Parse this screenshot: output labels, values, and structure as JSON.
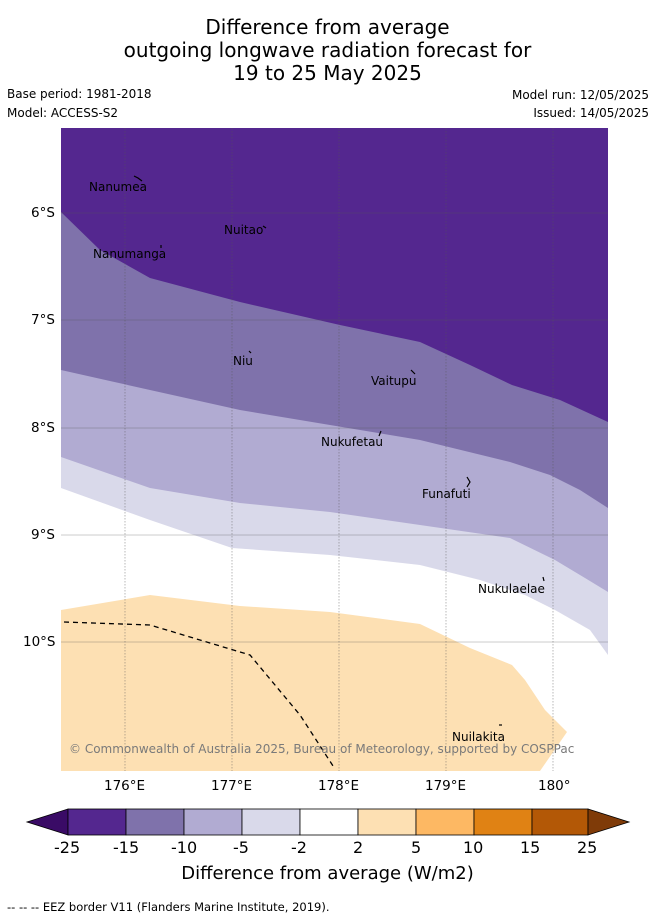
{
  "title": {
    "line1": "Difference from average",
    "line2": "outgoing longwave radiation forecast for",
    "line3": "19 to 25 May 2025"
  },
  "meta": {
    "base_period": "Base period: 1981-2018",
    "model": "Model: ACCESS-S2",
    "model_run": "Model run: 12/05/2025",
    "issued": "Issued: 14/05/2025"
  },
  "map": {
    "lat_labels": [
      "6°S",
      "7°S",
      "8°S",
      "9°S",
      "10°S"
    ],
    "lon_labels": [
      "176°E",
      "177°E",
      "178°E",
      "179°E",
      "180°"
    ],
    "places": [
      {
        "name": "Nanumea"
      },
      {
        "name": "Nuitao"
      },
      {
        "name": "Nanumanga"
      },
      {
        "name": "Niu"
      },
      {
        "name": "Vaitupu"
      },
      {
        "name": "Nukufetau"
      },
      {
        "name": "Funafuti"
      },
      {
        "name": "Nukulaelae"
      },
      {
        "name": "Nuilakita"
      }
    ],
    "copyright": "© Commonwealth of Australia 2025, Bureau of Meteorology, supported by COSPPac"
  },
  "colorbar": {
    "ticks": [
      "-25",
      "-15",
      "-10",
      "-5",
      "-2",
      "2",
      "5",
      "10",
      "15",
      "25"
    ],
    "colors": [
      "#3a0b66",
      "#54278f",
      "#7f72ab",
      "#b1abd2",
      "#d9d9ea",
      "#ffffff",
      "#fde0b3",
      "#fdb863",
      "#e08214",
      "#b35806",
      "#7f3b08"
    ],
    "title": "Difference from average (W/m2)"
  },
  "footer": "--  --  -- EEZ border V11 (Flanders Marine Institute, 2019)."
}
